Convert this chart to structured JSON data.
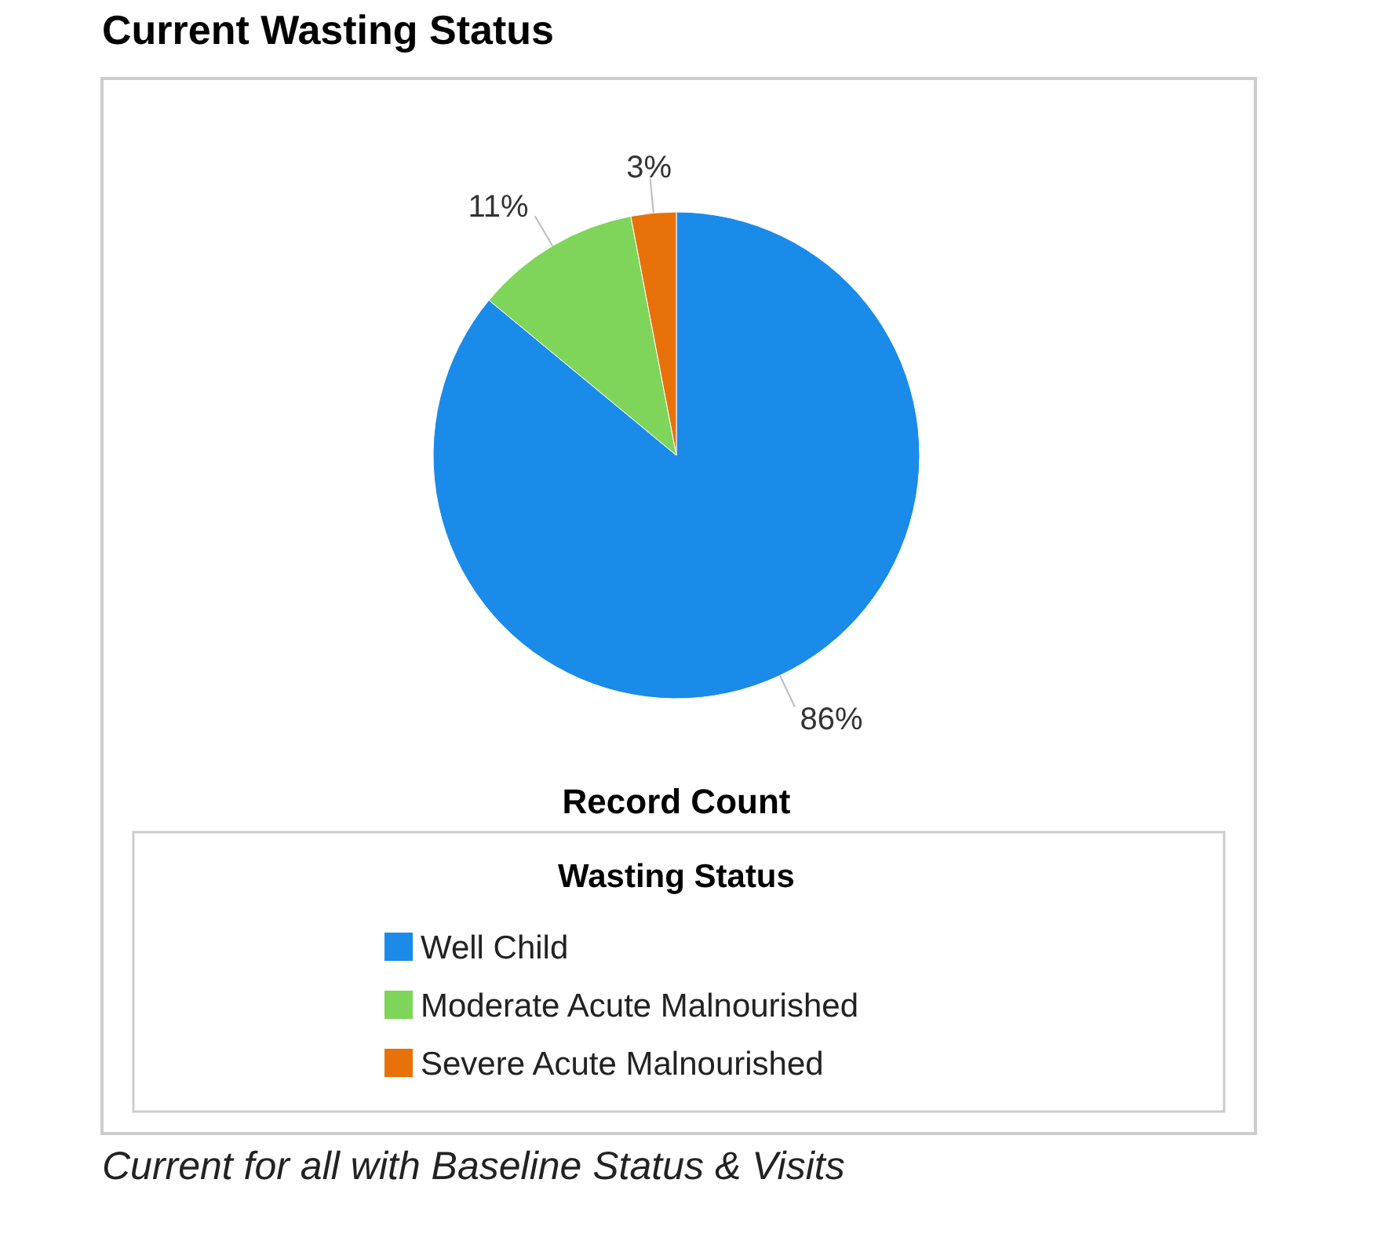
{
  "chart_data": {
    "type": "pie",
    "title": "Current Wasting Status",
    "xlabel": "Record Count",
    "legend_title": "Wasting Status",
    "categories": [
      "Well Child",
      "Moderate Acute Malnourished",
      "Severe Acute Malnourished"
    ],
    "values": [
      86,
      11,
      3
    ],
    "colors": [
      "#1a8be8",
      "#7fd45a",
      "#e8710a"
    ],
    "value_labels": [
      "86%",
      "11%",
      "3%"
    ],
    "legend": "bottom",
    "annotations": [
      "Current for all with Baseline Status & Visits"
    ]
  }
}
